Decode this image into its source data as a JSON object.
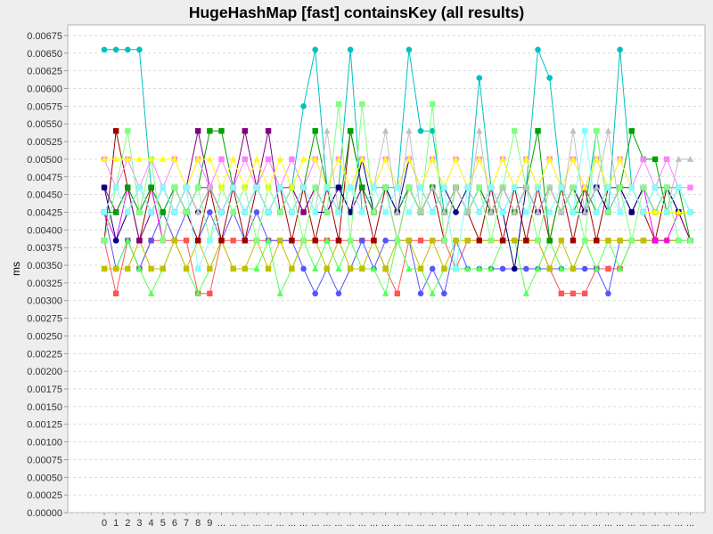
{
  "chart_data": {
    "type": "line",
    "title": "HugeHashMap [fast] containsKey (all results)",
    "xlabel": "",
    "ylabel": "ms",
    "ylim": [
      0,
      0.0069
    ],
    "yticks": [
      "0.00000",
      "0.00025",
      "0.00050",
      "0.00075",
      "0.00100",
      "0.00125",
      "0.00150",
      "0.00175",
      "0.00200",
      "0.00225",
      "0.00250",
      "0.00275",
      "0.00300",
      "0.00325",
      "0.00350",
      "0.00375",
      "0.00400",
      "0.00425",
      "0.00450",
      "0.00475",
      "0.00500",
      "0.00525",
      "0.00550",
      "0.00575",
      "0.00600",
      "0.00625",
      "0.00650",
      "0.00675"
    ],
    "categories": [
      "0",
      "1",
      "2",
      "3",
      "4",
      "5",
      "6",
      "7",
      "8",
      "9",
      "...",
      "...",
      "...",
      "...",
      "...",
      "...",
      "...",
      "...",
      "...",
      "...",
      "...",
      "...",
      "...",
      "...",
      "...",
      "...",
      "...",
      "...",
      "...",
      "...",
      "...",
      "...",
      "...",
      "...",
      "...",
      "...",
      "...",
      "...",
      "...",
      "...",
      "...",
      "...",
      "...",
      "...",
      "...",
      "...",
      "...",
      "...",
      "...",
      "...",
      "..."
    ],
    "grid": true,
    "legend": "none",
    "series": [
      {
        "color": "#00c0c0",
        "marker": "circle",
        "values": [
          0.00655,
          0.00655,
          0.00655,
          0.00655,
          0.0046,
          0.00425,
          0.0046,
          0.00425,
          0.0046,
          0.0046,
          0.00425,
          0.0046,
          0.00425,
          0.0046,
          0.00425,
          0.0046,
          0.0046,
          0.00575,
          0.00655,
          0.0046,
          0.0046,
          0.00655,
          0.00425,
          0.0046,
          0.0046,
          0.0046,
          0.00655,
          0.0054,
          0.0054,
          0.00425,
          0.0046,
          0.00425,
          0.00615,
          0.0046,
          0.00425,
          0.0046,
          0.0046,
          0.00655,
          0.00615,
          0.0046,
          0.00425,
          0.00425,
          0.0054,
          0.00425,
          0.00655,
          0.0046,
          0.00425,
          0.0046,
          0.0046,
          0.0046,
          0.00425
        ]
      },
      {
        "color": "#ff5555",
        "marker": "square",
        "values": [
          0.00385,
          0.0031,
          0.00385,
          0.00345,
          0.00385,
          0.00385,
          0.00385,
          0.00385,
          0.0031,
          0.0031,
          0.00385,
          0.00385,
          0.00385,
          0.00385,
          0.00385,
          0.00385,
          0.00385,
          0.00385,
          0.00385,
          0.00385,
          0.00385,
          0.00385,
          0.00385,
          0.00385,
          0.00345,
          0.0031,
          0.00385,
          0.00385,
          0.00385,
          0.00385,
          0.00345,
          0.00385,
          0.00385,
          0.00385,
          0.00385,
          0.00385,
          0.00385,
          0.00385,
          0.00345,
          0.0031,
          0.0031,
          0.0031,
          0.00345,
          0.00345,
          0.00345,
          0.00385,
          0.00385,
          0.00385,
          0.00385,
          0.00385,
          0.00385
        ]
      },
      {
        "color": "#5555ff",
        "marker": "circle",
        "values": [
          0.00425,
          0.00345,
          0.00385,
          0.00345,
          0.00385,
          0.00425,
          0.00385,
          0.00425,
          0.00385,
          0.00425,
          0.00385,
          0.00425,
          0.00385,
          0.00425,
          0.00385,
          0.00385,
          0.00385,
          0.00345,
          0.0031,
          0.00345,
          0.0031,
          0.00345,
          0.00385,
          0.00345,
          0.00385,
          0.00385,
          0.00385,
          0.0031,
          0.00345,
          0.0031,
          0.00385,
          0.00345,
          0.00345,
          0.00345,
          0.00345,
          0.00345,
          0.00345,
          0.00345,
          0.00345,
          0.00345,
          0.00345,
          0.00345,
          0.00345,
          0.0031,
          0.00385,
          0.00385,
          0.00385,
          0.00385,
          0.00385,
          0.00385,
          0.00385
        ]
      },
      {
        "color": "#55ff55",
        "marker": "triangle",
        "values": [
          0.00345,
          0.00345,
          0.00385,
          0.00345,
          0.0031,
          0.00345,
          0.00385,
          0.00345,
          0.0031,
          0.00345,
          0.00385,
          0.00345,
          0.00345,
          0.00345,
          0.00385,
          0.0031,
          0.00345,
          0.00385,
          0.00345,
          0.00385,
          0.00345,
          0.00385,
          0.00345,
          0.00345,
          0.0031,
          0.00385,
          0.00345,
          0.00345,
          0.0031,
          0.00345,
          0.00345,
          0.00345,
          0.00345,
          0.00345,
          0.00385,
          0.00385,
          0.0031,
          0.00345,
          0.00385,
          0.00345,
          0.00345,
          0.00385,
          0.00345,
          0.00385,
          0.00345,
          0.00385,
          0.00385,
          0.00385,
          0.00385,
          0.00385,
          0.00385
        ]
      },
      {
        "color": "#c0c000",
        "marker": "square",
        "values": [
          0.00345,
          0.00345,
          0.00345,
          0.00385,
          0.00345,
          0.00345,
          0.00385,
          0.00345,
          0.00385,
          0.00345,
          0.00385,
          0.00345,
          0.00345,
          0.00385,
          0.00345,
          0.00385,
          0.00345,
          0.00385,
          0.00385,
          0.00345,
          0.00385,
          0.00345,
          0.00345,
          0.00385,
          0.00345,
          0.00385,
          0.00385,
          0.00345,
          0.00385,
          0.00345,
          0.00385,
          0.00385,
          0.00385,
          0.00385,
          0.00385,
          0.00385,
          0.00385,
          0.00385,
          0.00345,
          0.00385,
          0.00345,
          0.00385,
          0.00385,
          0.00385,
          0.00385,
          0.00385,
          0.00385,
          0.00385,
          0.00385,
          0.00385,
          0.00385
        ]
      },
      {
        "color": "#a00000",
        "marker": "square",
        "values": [
          0.00385,
          0.0054,
          0.0046,
          0.00385,
          0.0046,
          0.00385,
          0.0046,
          0.00425,
          0.00385,
          0.0046,
          0.00385,
          0.0046,
          0.00385,
          0.0046,
          0.00425,
          0.0046,
          0.00385,
          0.0046,
          0.00385,
          0.0046,
          0.00385,
          0.0054,
          0.0046,
          0.00385,
          0.0046,
          0.00385,
          0.0046,
          0.00425,
          0.0046,
          0.00385,
          0.0046,
          0.00425,
          0.00385,
          0.0046,
          0.00385,
          0.0046,
          0.00385,
          0.0046,
          0.00385,
          0.0046,
          0.00385,
          0.0046,
          0.00385,
          0.0046,
          0.0046,
          0.0046,
          0.00425,
          0.00385,
          0.0046,
          0.00425,
          0.00385
        ]
      },
      {
        "color": "#ff00ff",
        "marker": "circle",
        "values": [
          0.00425,
          0.00385,
          0.0046,
          0.00425,
          0.0046,
          0.00385,
          0.0046,
          0.00425,
          0.0046,
          0.0046,
          0.00425,
          0.0046,
          0.00425,
          0.0046,
          0.00425,
          0.0046,
          0.0046,
          0.00425,
          0.0046,
          0.00425,
          0.0046,
          0.00425,
          0.0046,
          0.00425,
          0.0046,
          0.00425,
          0.0046,
          0.00425,
          0.0046,
          0.00425,
          0.0046,
          0.00425,
          0.0046,
          0.00425,
          0.0046,
          0.00425,
          0.0046,
          0.00425,
          0.0046,
          0.00425,
          0.0046,
          0.00425,
          0.0046,
          0.00425,
          0.0046,
          0.00425,
          0.0046,
          0.00385,
          0.00385,
          0.00425,
          0.00425
        ]
      },
      {
        "color": "#800080",
        "marker": "square",
        "values": [
          0.0046,
          0.00425,
          0.0046,
          0.00385,
          0.00425,
          0.0046,
          0.00425,
          0.0046,
          0.0054,
          0.0046,
          0.00425,
          0.0046,
          0.0054,
          0.0046,
          0.0054,
          0.00425,
          0.0046,
          0.00425,
          0.0046,
          0.00425,
          0.0046,
          0.00425,
          0.0046,
          0.00425,
          0.0046,
          0.00425,
          0.0046,
          0.00425,
          0.0046,
          0.00425,
          0.0046,
          0.00425,
          0.0046,
          0.00425,
          0.0046,
          0.00425,
          0.0046,
          0.00425,
          0.0046,
          0.00425,
          0.0046,
          0.00425,
          0.0046,
          0.00425,
          0.0046,
          0.00425,
          0.0046,
          0.00425,
          0.0046,
          0.00425,
          0.00385
        ]
      },
      {
        "color": "#00a000",
        "marker": "square",
        "values": [
          0.00425,
          0.00425,
          0.0046,
          0.00425,
          0.0046,
          0.00425,
          0.0046,
          0.00425,
          0.0046,
          0.0054,
          0.0054,
          0.0046,
          0.00425,
          0.0046,
          0.00425,
          0.0046,
          0.00425,
          0.0046,
          0.0054,
          0.0046,
          0.00425,
          0.0054,
          0.0046,
          0.00425,
          0.0046,
          0.00425,
          0.0046,
          0.00425,
          0.0046,
          0.00425,
          0.0046,
          0.00425,
          0.0046,
          0.00425,
          0.0046,
          0.00425,
          0.0046,
          0.0054,
          0.00385,
          0.0046,
          0.00425,
          0.0046,
          0.00425,
          0.0046,
          0.0046,
          0.0054,
          0.005,
          0.005,
          0.00425,
          0.0046,
          0.00385
        ]
      },
      {
        "color": "#000080",
        "marker": "circle",
        "values": [
          0.0046,
          0.00385,
          0.00425,
          0.0046,
          0.00425,
          0.0046,
          0.00425,
          0.0046,
          0.00425,
          0.0046,
          0.00425,
          0.0046,
          0.00425,
          0.0046,
          0.00425,
          0.0046,
          0.00425,
          0.0046,
          0.00425,
          0.00425,
          0.0046,
          0.00425,
          0.005,
          0.00425,
          0.0046,
          0.00425,
          0.005,
          0.0046,
          0.00425,
          0.0046,
          0.00425,
          0.0046,
          0.00425,
          0.0046,
          0.00425,
          0.00345,
          0.0046,
          0.00425,
          0.0046,
          0.00425,
          0.0046,
          0.00425,
          0.0046,
          0.00425,
          0.0046,
          0.00425,
          0.0046,
          0.00425,
          0.0046,
          0.00425,
          0.00425
        ]
      },
      {
        "color": "#ff80ff",
        "marker": "square",
        "values": [
          0.005,
          0.0046,
          0.005,
          0.0046,
          0.005,
          0.0046,
          0.005,
          0.0046,
          0.005,
          0.0046,
          0.005,
          0.0046,
          0.005,
          0.0046,
          0.005,
          0.0046,
          0.005,
          0.0046,
          0.005,
          0.0046,
          0.005,
          0.0046,
          0.005,
          0.0046,
          0.005,
          0.0046,
          0.005,
          0.0046,
          0.005,
          0.0046,
          0.005,
          0.0046,
          0.005,
          0.0046,
          0.005,
          0.0046,
          0.005,
          0.0046,
          0.005,
          0.0046,
          0.005,
          0.0046,
          0.005,
          0.0046,
          0.005,
          0.0046,
          0.005,
          0.0046,
          0.005,
          0.0046,
          0.0046
        ]
      },
      {
        "color": "#80ff80",
        "marker": "square",
        "values": [
          0.00385,
          0.0046,
          0.0054,
          0.00425,
          0.005,
          0.00385,
          0.0046,
          0.00425,
          0.0046,
          0.00385,
          0.0046,
          0.00425,
          0.0046,
          0.00385,
          0.0046,
          0.00425,
          0.0046,
          0.00385,
          0.0046,
          0.00425,
          0.00578,
          0.00385,
          0.00578,
          0.00425,
          0.0046,
          0.00385,
          0.0046,
          0.00425,
          0.00578,
          0.00385,
          0.0046,
          0.00425,
          0.0046,
          0.00385,
          0.0046,
          0.0054,
          0.0046,
          0.00385,
          0.0046,
          0.00425,
          0.0046,
          0.00385,
          0.0054,
          0.00425,
          0.0046,
          0.00385,
          0.0046,
          0.00425,
          0.0046,
          0.00385,
          0.00385
        ]
      },
      {
        "color": "#ffff00",
        "marker": "triangle",
        "values": [
          0.005,
          0.005,
          0.005,
          0.005,
          0.005,
          0.005,
          0.005,
          0.0046,
          0.005,
          0.005,
          0.0046,
          0.005,
          0.0046,
          0.005,
          0.0046,
          0.005,
          0.0046,
          0.005,
          0.005,
          0.0046,
          0.005,
          0.0046,
          0.005,
          0.0046,
          0.005,
          0.0046,
          0.005,
          0.0046,
          0.005,
          0.0046,
          0.005,
          0.0046,
          0.005,
          0.0046,
          0.005,
          0.0046,
          0.005,
          0.0046,
          0.005,
          0.0046,
          0.005,
          0.0046,
          0.005,
          0.0046,
          0.005,
          0.0046,
          0.00425,
          0.00425,
          0.00425,
          0.00425,
          0.00425
        ]
      },
      {
        "color": "#c0c0c0",
        "marker": "triangle",
        "values": [
          0.00425,
          0.0046,
          0.00425,
          0.0046,
          0.00425,
          0.0046,
          0.00425,
          0.0046,
          0.00425,
          0.0046,
          0.00425,
          0.0046,
          0.00425,
          0.0046,
          0.00425,
          0.0046,
          0.00425,
          0.0046,
          0.00425,
          0.0054,
          0.00425,
          0.0046,
          0.00425,
          0.0046,
          0.0054,
          0.00425,
          0.0054,
          0.00425,
          0.0046,
          0.00425,
          0.0046,
          0.00425,
          0.0054,
          0.00425,
          0.0046,
          0.00425,
          0.0046,
          0.00425,
          0.0046,
          0.00425,
          0.0054,
          0.00425,
          0.0046,
          0.0054,
          0.00425,
          0.0046,
          0.00425,
          0.0046,
          0.00425,
          0.005,
          0.005
        ]
      },
      {
        "color": "#80ffff",
        "marker": "square",
        "values": [
          0.00425,
          0.0046,
          0.00425,
          0.0046,
          0.00425,
          0.0046,
          0.00425,
          0.0046,
          0.00345,
          0.00385,
          0.00425,
          0.0046,
          0.00425,
          0.0046,
          0.00425,
          0.0046,
          0.00425,
          0.0046,
          0.00425,
          0.0046,
          0.00425,
          0.0046,
          0.00425,
          0.0046,
          0.00425,
          0.0046,
          0.00425,
          0.0046,
          0.00425,
          0.0046,
          0.00345,
          0.0046,
          0.00425,
          0.0046,
          0.00425,
          0.0046,
          0.00425,
          0.0046,
          0.00425,
          0.0046,
          0.00425,
          0.0054,
          0.00425,
          0.0046,
          0.00425,
          0.0046,
          0.00425,
          0.0046,
          0.00425,
          0.0046,
          0.00425
        ]
      }
    ]
  }
}
